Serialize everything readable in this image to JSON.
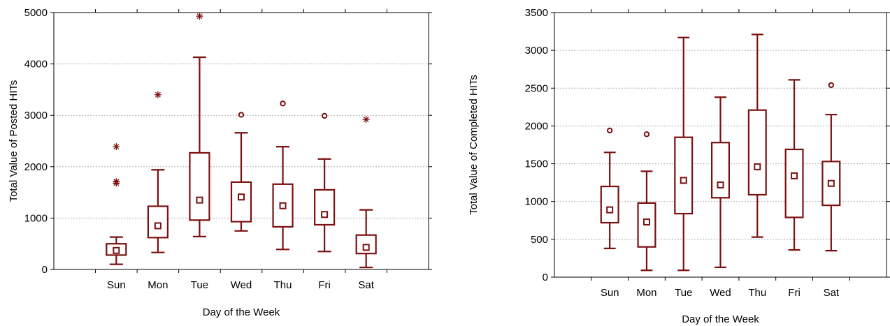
{
  "chart_data": [
    {
      "type": "box",
      "xlabel": "Day of the Week",
      "ylabel": "Total Value of Posted HITs",
      "categories": [
        "Sun",
        "Mon",
        "Tue",
        "Wed",
        "Thu",
        "Fri",
        "Sat"
      ],
      "ylim": [
        0,
        5000
      ],
      "yticks": [
        0,
        1000,
        2000,
        3000,
        4000,
        5000
      ],
      "grid": true,
      "color": "#7b1010",
      "boxes": [
        {
          "category": "Sun",
          "whisker_low": 100,
          "q1": 280,
          "median": 370,
          "q3": 500,
          "whisker_high": 630,
          "outliers": [],
          "extremes": [
            1680,
            1710,
            2390
          ]
        },
        {
          "category": "Mon",
          "whisker_low": 330,
          "q1": 620,
          "median": 850,
          "q3": 1230,
          "whisker_high": 1940,
          "outliers": [],
          "extremes": [
            3400
          ]
        },
        {
          "category": "Tue",
          "whisker_low": 640,
          "q1": 960,
          "median": 1350,
          "q3": 2270,
          "whisker_high": 4130,
          "outliers": [],
          "extremes": [
            4930
          ]
        },
        {
          "category": "Wed",
          "whisker_low": 750,
          "q1": 930,
          "median": 1410,
          "q3": 1700,
          "whisker_high": 2660,
          "outliers": [
            3010
          ],
          "extremes": []
        },
        {
          "category": "Thu",
          "whisker_low": 390,
          "q1": 830,
          "median": 1240,
          "q3": 1660,
          "whisker_high": 2390,
          "outliers": [
            3230
          ],
          "extremes": []
        },
        {
          "category": "Fri",
          "whisker_low": 350,
          "q1": 870,
          "median": 1070,
          "q3": 1550,
          "whisker_high": 2150,
          "outliers": [
            2990
          ],
          "extremes": []
        },
        {
          "category": "Sat",
          "whisker_low": 40,
          "q1": 310,
          "median": 430,
          "q3": 670,
          "whisker_high": 1160,
          "outliers": [],
          "extremes": [
            2920
          ]
        }
      ]
    },
    {
      "type": "box",
      "xlabel": "Day of the Week",
      "ylabel": "Total Value of Completed HITs",
      "categories": [
        "Sun",
        "Mon",
        "Tue",
        "Wed",
        "Thu",
        "Fri",
        "Sat"
      ],
      "ylim": [
        0,
        3500
      ],
      "yticks": [
        0,
        500,
        1000,
        1500,
        2000,
        2500,
        3000,
        3500
      ],
      "grid": true,
      "color": "#7b1010",
      "boxes": [
        {
          "category": "Sun",
          "whisker_low": 380,
          "q1": 720,
          "median": 890,
          "q3": 1200,
          "whisker_high": 1650,
          "outliers": [
            1940
          ],
          "extremes": []
        },
        {
          "category": "Mon",
          "whisker_low": 90,
          "q1": 400,
          "median": 730,
          "q3": 980,
          "whisker_high": 1400,
          "outliers": [
            1890
          ],
          "extremes": []
        },
        {
          "category": "Tue",
          "whisker_low": 90,
          "q1": 840,
          "median": 1280,
          "q3": 1850,
          "whisker_high": 3170,
          "outliers": [],
          "extremes": []
        },
        {
          "category": "Wed",
          "whisker_low": 130,
          "q1": 1050,
          "median": 1220,
          "q3": 1780,
          "whisker_high": 2380,
          "outliers": [],
          "extremes": []
        },
        {
          "category": "Thu",
          "whisker_low": 530,
          "q1": 1090,
          "median": 1460,
          "q3": 2210,
          "whisker_high": 3210,
          "outliers": [],
          "extremes": []
        },
        {
          "category": "Fri",
          "whisker_low": 360,
          "q1": 790,
          "median": 1340,
          "q3": 1690,
          "whisker_high": 2610,
          "outliers": [],
          "extremes": []
        },
        {
          "category": "Sat",
          "whisker_low": 350,
          "q1": 950,
          "median": 1240,
          "q3": 1530,
          "whisker_high": 2150,
          "outliers": [
            2540
          ],
          "extremes": []
        }
      ]
    }
  ]
}
